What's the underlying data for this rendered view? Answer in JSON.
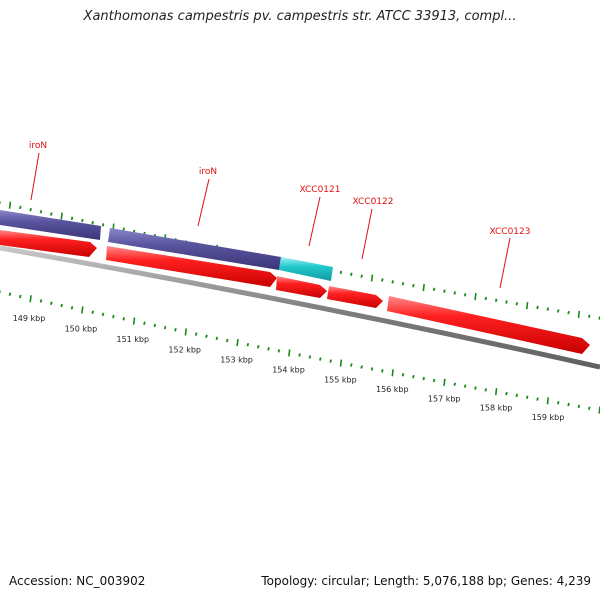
{
  "header": {
    "title": "Xanthomonas campestris pv. campestris str. ATCC 33913, compl..."
  },
  "footer": {
    "accession_label": "Accession: NC_003902",
    "summary": "Topology: circular; Length: 5,076,188 bp; Genes: 4,239"
  },
  "genes": [
    {
      "name": "iroN",
      "show_label": true
    },
    {
      "name": "iroN",
      "show_label": true
    },
    {
      "name": "XCC0121",
      "show_label": true
    },
    {
      "name": "XCC0122",
      "show_label": true
    },
    {
      "name": "XCC0123",
      "show_label": true
    }
  ],
  "scale": {
    "labels": [
      "149 kbp",
      "150 kbp",
      "151 kbp",
      "152 kbp",
      "153 kbp",
      "154 kbp",
      "155 kbp",
      "156 kbp",
      "157 kbp",
      "158 kbp",
      "159 kbp"
    ]
  },
  "colors": {
    "label": "#e01010",
    "tick": "#1a8a1a",
    "cds": "#ee1111",
    "gene": "#55509a",
    "misc_feature": "#20c8cc",
    "backbone": "#808080"
  }
}
